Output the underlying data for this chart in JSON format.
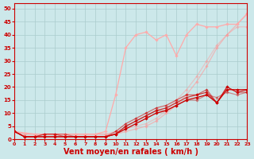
{
  "background_color": "#cce8ea",
  "grid_color": "#aacccc",
  "xlabel": "Vent moyen/en rafales ( km/h )",
  "xlabel_color": "#cc0000",
  "xlabel_fontsize": 7,
  "xtick_color": "#cc0000",
  "ytick_color": "#cc0000",
  "xlim": [
    0,
    23
  ],
  "ylim": [
    0,
    52
  ],
  "yticks": [
    0,
    5,
    10,
    15,
    20,
    25,
    30,
    35,
    40,
    45,
    50
  ],
  "xticks": [
    0,
    1,
    2,
    3,
    4,
    5,
    6,
    7,
    8,
    9,
    10,
    11,
    12,
    13,
    14,
    15,
    16,
    17,
    18,
    19,
    20,
    21,
    22,
    23
  ],
  "lines": [
    {
      "x": [
        0,
        1,
        2,
        3,
        4,
        5,
        6,
        7,
        8,
        9,
        10,
        11,
        12,
        13,
        14,
        15,
        16,
        17,
        18,
        19,
        20,
        21,
        22,
        23
      ],
      "y": [
        3,
        2,
        2,
        2,
        2,
        2,
        2,
        2,
        2,
        2,
        2,
        3,
        4,
        5,
        7,
        10,
        13,
        17,
        22,
        28,
        35,
        40,
        44,
        48
      ],
      "color": "#ff9999",
      "lw": 0.9,
      "marker": "D",
      "ms": 1.8,
      "alpha": 0.6
    },
    {
      "x": [
        0,
        1,
        2,
        3,
        4,
        5,
        6,
        7,
        8,
        9,
        10,
        11,
        12,
        13,
        14,
        15,
        16,
        17,
        18,
        19,
        20,
        21,
        22,
        23
      ],
      "y": [
        3,
        2,
        2,
        2,
        2,
        2,
        2,
        2,
        2,
        2,
        3,
        4,
        5,
        6,
        8,
        11,
        15,
        19,
        24,
        30,
        36,
        40,
        43,
        43
      ],
      "color": "#ff9999",
      "lw": 0.9,
      "marker": "D",
      "ms": 1.8,
      "alpha": 0.45
    },
    {
      "x": [
        0,
        2,
        3,
        4,
        5,
        6,
        7,
        8,
        9,
        10,
        11,
        12,
        13,
        14,
        15,
        16,
        17,
        18,
        19,
        20,
        21,
        22,
        23
      ],
      "y": [
        3,
        2,
        2,
        2,
        2,
        2,
        2,
        2,
        3,
        17,
        35,
        40,
        41,
        38,
        40,
        32,
        40,
        44,
        43,
        43,
        44,
        44,
        48
      ],
      "color": "#ffaaaa",
      "lw": 0.9,
      "marker": "D",
      "ms": 1.8,
      "alpha": 1.0
    },
    {
      "x": [
        0,
        1,
        2,
        3,
        4,
        5,
        6,
        7,
        8,
        9,
        10,
        11,
        12,
        13,
        14,
        15,
        16,
        17,
        18,
        19,
        20,
        21,
        22,
        23
      ],
      "y": [
        3,
        1,
        1,
        1,
        1,
        1,
        1,
        1,
        1,
        1,
        2,
        4,
        6,
        8,
        10,
        11,
        13,
        15,
        16,
        17,
        14,
        19,
        19,
        19
      ],
      "color": "#cc0000",
      "lw": 0.9,
      "marker": "D",
      "ms": 1.8,
      "alpha": 1.0
    },
    {
      "x": [
        0,
        1,
        2,
        3,
        4,
        5,
        6,
        7,
        8,
        9,
        10,
        11,
        12,
        13,
        14,
        15,
        16,
        17,
        18,
        19,
        20,
        21,
        22,
        23
      ],
      "y": [
        3,
        1,
        1,
        1,
        1,
        1,
        1,
        1,
        1,
        1,
        2,
        5,
        7,
        9,
        11,
        12,
        14,
        16,
        17,
        18,
        14,
        20,
        18,
        19
      ],
      "color": "#cc0000",
      "lw": 0.9,
      "marker": "D",
      "ms": 1.8,
      "alpha": 0.75
    },
    {
      "x": [
        0,
        1,
        2,
        3,
        4,
        5,
        6,
        7,
        8,
        9,
        10,
        11,
        12,
        13,
        14,
        15,
        16,
        17,
        18,
        19,
        20,
        21,
        22,
        23
      ],
      "y": [
        3,
        1,
        1,
        2,
        2,
        1,
        1,
        1,
        1,
        1,
        3,
        6,
        8,
        10,
        12,
        13,
        15,
        17,
        17,
        19,
        14,
        20,
        18,
        18
      ],
      "color": "#cc0000",
      "lw": 0.9,
      "marker": "D",
      "ms": 1.8,
      "alpha": 0.55
    },
    {
      "x": [
        0,
        1,
        2,
        3,
        4,
        5,
        6,
        7,
        8,
        9,
        10,
        11,
        12,
        13,
        14,
        15,
        16,
        17,
        18,
        19,
        20,
        21,
        22,
        23
      ],
      "y": [
        3,
        1,
        1,
        2,
        2,
        2,
        1,
        1,
        1,
        1,
        2,
        5,
        7,
        9,
        11,
        11,
        13,
        15,
        15,
        17,
        16,
        18,
        17,
        18
      ],
      "color": "#cc0000",
      "lw": 0.9,
      "marker": "D",
      "ms": 1.8,
      "alpha": 0.4
    }
  ]
}
